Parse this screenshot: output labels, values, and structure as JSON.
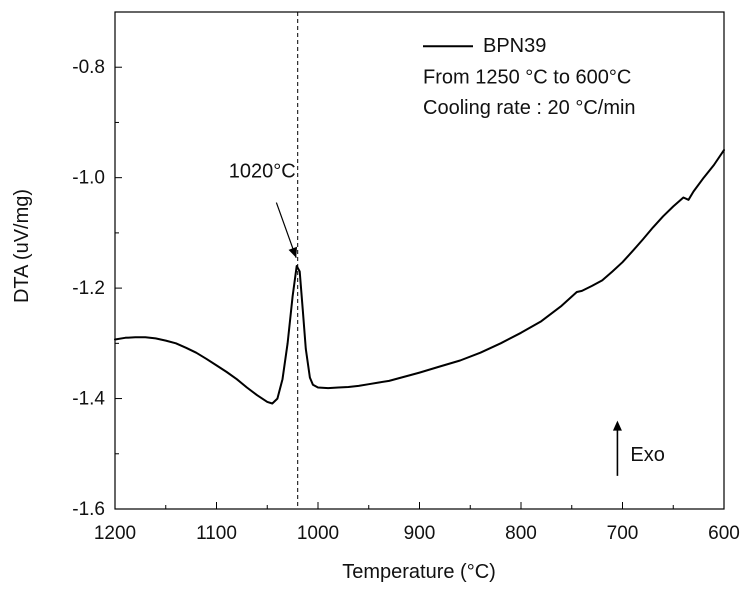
{
  "chart_data": {
    "type": "line",
    "title": "",
    "xlabel": "Temperature (°C)",
    "ylabel": "DTA (uV/mg)",
    "xlim": [
      1200,
      600
    ],
    "ylim": [
      -1.6,
      -0.7
    ],
    "x_reversed": true,
    "grid": false,
    "legend_position": "top-right",
    "x_ticks": [
      {
        "value": 1200,
        "label": "1200"
      },
      {
        "value": 1100,
        "label": "1100"
      },
      {
        "value": 1000,
        "label": "1000"
      },
      {
        "value": 900,
        "label": "900"
      },
      {
        "value": 800,
        "label": "800"
      },
      {
        "value": 700,
        "label": "700"
      },
      {
        "value": 600,
        "label": "600"
      }
    ],
    "y_ticks": [
      {
        "value": -1.6,
        "label": "-1.6"
      },
      {
        "value": -1.4,
        "label": "-1.4"
      },
      {
        "value": -1.2,
        "label": "-1.2"
      },
      {
        "value": -1.0,
        "label": "-1.0"
      },
      {
        "value": -0.8,
        "label": "-0.8"
      }
    ],
    "series": [
      {
        "name": "BPN39",
        "color": "#000000",
        "points": [
          [
            1200,
            -1.293
          ],
          [
            1190,
            -1.29
          ],
          [
            1180,
            -1.289
          ],
          [
            1170,
            -1.289
          ],
          [
            1160,
            -1.291
          ],
          [
            1150,
            -1.295
          ],
          [
            1140,
            -1.3
          ],
          [
            1130,
            -1.308
          ],
          [
            1120,
            -1.317
          ],
          [
            1110,
            -1.328
          ],
          [
            1100,
            -1.34
          ],
          [
            1090,
            -1.352
          ],
          [
            1080,
            -1.365
          ],
          [
            1070,
            -1.38
          ],
          [
            1060,
            -1.394
          ],
          [
            1050,
            -1.406
          ],
          [
            1045,
            -1.409
          ],
          [
            1040,
            -1.4
          ],
          [
            1035,
            -1.365
          ],
          [
            1030,
            -1.3
          ],
          [
            1025,
            -1.215
          ],
          [
            1021,
            -1.16
          ],
          [
            1018,
            -1.17
          ],
          [
            1015,
            -1.24
          ],
          [
            1012,
            -1.31
          ],
          [
            1008,
            -1.362
          ],
          [
            1005,
            -1.375
          ],
          [
            1000,
            -1.38
          ],
          [
            990,
            -1.381
          ],
          [
            980,
            -1.38
          ],
          [
            970,
            -1.379
          ],
          [
            960,
            -1.377
          ],
          [
            950,
            -1.374
          ],
          [
            940,
            -1.371
          ],
          [
            930,
            -1.368
          ],
          [
            920,
            -1.363
          ],
          [
            910,
            -1.358
          ],
          [
            900,
            -1.353
          ],
          [
            880,
            -1.342
          ],
          [
            860,
            -1.331
          ],
          [
            840,
            -1.317
          ],
          [
            820,
            -1.3
          ],
          [
            800,
            -1.281
          ],
          [
            780,
            -1.26
          ],
          [
            760,
            -1.232
          ],
          [
            745,
            -1.207
          ],
          [
            740,
            -1.205
          ],
          [
            730,
            -1.196
          ],
          [
            720,
            -1.186
          ],
          [
            710,
            -1.17
          ],
          [
            700,
            -1.153
          ],
          [
            690,
            -1.133
          ],
          [
            680,
            -1.112
          ],
          [
            670,
            -1.09
          ],
          [
            660,
            -1.07
          ],
          [
            650,
            -1.052
          ],
          [
            640,
            -1.036
          ],
          [
            635,
            -1.04
          ],
          [
            630,
            -1.025
          ],
          [
            620,
            -1.0
          ],
          [
            610,
            -0.977
          ],
          [
            600,
            -0.95
          ]
        ]
      }
    ],
    "annotations": {
      "peak_label": "1020°C",
      "peak_x": 1020,
      "peak_y": -1.158,
      "label_x": 1055,
      "label_y": -1.0,
      "dashed_line_x": 1020,
      "legend_lines": [
        "BPN39",
        "From 1250 °C to 600°C",
        "Cooling rate : 20 °C/min"
      ],
      "exo_label": "Exo",
      "exo_arrow_x": 705,
      "exo_arrow_y_from": -1.54,
      "exo_arrow_y_to": -1.44
    }
  }
}
